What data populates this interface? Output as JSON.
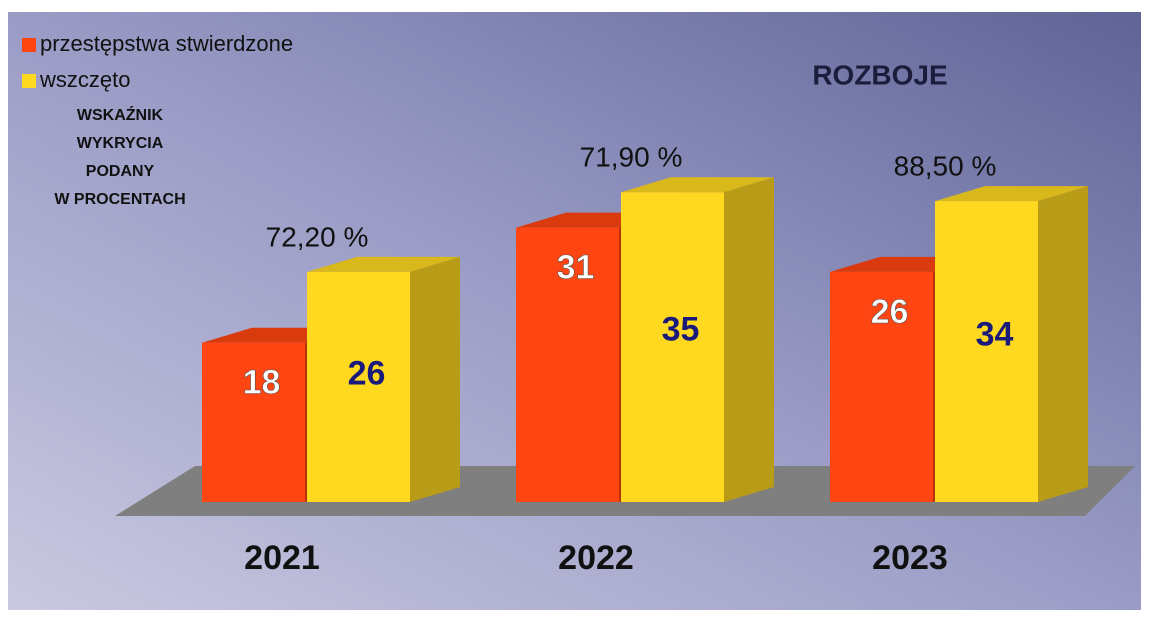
{
  "chart_data": {
    "type": "bar3d",
    "title": "ROZBOJE",
    "note": [
      "WSKAŹNIK",
      "WYKRYCIA",
      "PODANY",
      "W PROCENTACH"
    ],
    "categories": [
      "2021",
      "2022",
      "2023"
    ],
    "series": [
      {
        "name": "przestępstwa stwierdzone",
        "color": "#ff4511",
        "values": [
          18,
          31,
          26
        ]
      },
      {
        "name": "wszczęto",
        "color": "#ffd920",
        "values": [
          26,
          35,
          34
        ]
      }
    ],
    "annotations": [
      "72,20 %",
      "71,90 %",
      "88,50 %"
    ]
  }
}
